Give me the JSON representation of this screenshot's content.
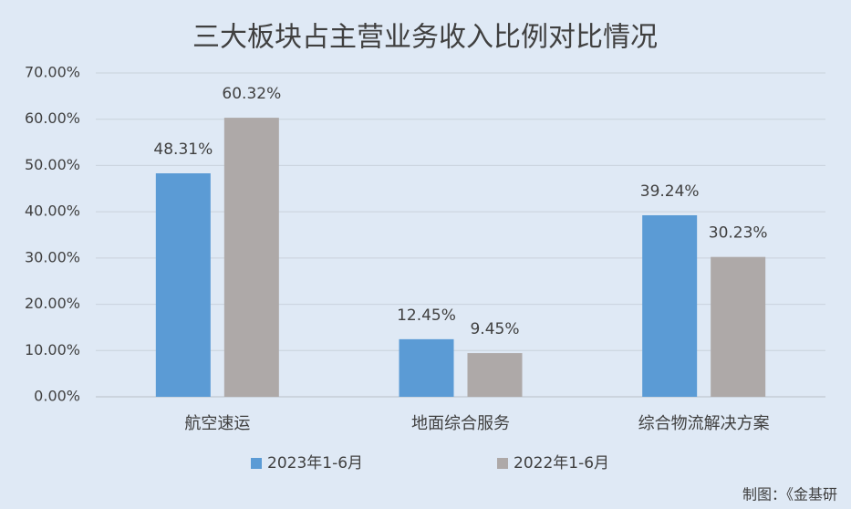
{
  "chart_data": {
    "type": "bar",
    "title": "三大板块占主营业务收入比例对比情况",
    "categories": [
      "航空速运",
      "地面综合服务",
      "综合物流解决方案"
    ],
    "series": [
      {
        "name": "2023年1-6月",
        "color": "#5b9bd5",
        "values": [
          48.31,
          12.45,
          39.24
        ],
        "value_labels": [
          "48.31%",
          "12.45%",
          "39.24%"
        ]
      },
      {
        "name": "2022年1-6月",
        "color": "#aea9a8",
        "values": [
          60.32,
          9.45,
          30.23
        ],
        "value_labels": [
          "60.32%",
          "9.45%",
          "30.23%"
        ]
      }
    ],
    "ylim": [
      0,
      70
    ],
    "yticks": [
      {
        "value": 0,
        "label": "0.00%"
      },
      {
        "value": 10,
        "label": "10.00%"
      },
      {
        "value": 20,
        "label": "20.00%"
      },
      {
        "value": 30,
        "label": "30.00%"
      },
      {
        "value": 40,
        "label": "40.00%"
      },
      {
        "value": 50,
        "label": "50.00%"
      },
      {
        "value": 60,
        "label": "60.00%"
      },
      {
        "value": 70,
        "label": "70.00%"
      }
    ],
    "grid": true,
    "legend": "bottom",
    "note": "制图：《金基研"
  }
}
